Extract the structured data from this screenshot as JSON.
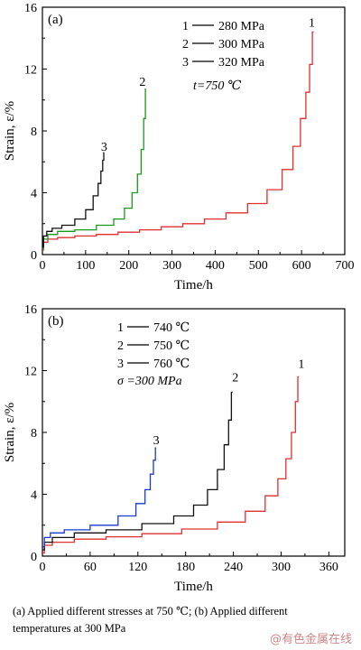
{
  "chart_data": [
    {
      "type": "line",
      "panel_label": "(a)",
      "xlabel": "Time/h",
      "ylabel": "Strain, ε/%",
      "xlim": [
        0,
        700
      ],
      "ylim": [
        0,
        16
      ],
      "xticks": [
        0,
        100,
        200,
        300,
        400,
        500,
        600,
        700
      ],
      "yticks": [
        0,
        4,
        8,
        12,
        16
      ],
      "grid": false,
      "legend_position": "top-right",
      "legend": [
        "1 — 280 MPa",
        "2 — 300 MPa",
        "3 — 320 MPa"
      ],
      "annotation": "t=750 ℃",
      "colors": {
        "1": "#e03030",
        "2": "#1a9a1a",
        "3": "#111111"
      },
      "series": [
        {
          "name": "1",
          "curve_label": "1",
          "color": "#e03030",
          "x": [
            0,
            5,
            20,
            50,
            100,
            150,
            200,
            250,
            300,
            350,
            400,
            450,
            500,
            540,
            570,
            590,
            605,
            615,
            622,
            628
          ],
          "y": [
            0.3,
            0.8,
            1.0,
            1.1,
            1.2,
            1.3,
            1.45,
            1.6,
            1.8,
            2.0,
            2.3,
            2.7,
            3.3,
            4.2,
            5.5,
            7.0,
            8.8,
            10.5,
            12.3,
            14.4
          ]
        },
        {
          "name": "2",
          "curve_label": "2",
          "color": "#1a9a1a",
          "x": [
            0,
            5,
            20,
            50,
            100,
            150,
            180,
            200,
            215,
            225,
            232,
            237,
            240
          ],
          "y": [
            0.4,
            1.0,
            1.3,
            1.5,
            1.6,
            1.9,
            2.3,
            3.0,
            4.0,
            5.2,
            6.8,
            8.8,
            10.7
          ]
        },
        {
          "name": "3",
          "curve_label": "3",
          "color": "#111111",
          "x": [
            0,
            5,
            15,
            30,
            60,
            90,
            110,
            125,
            133,
            138,
            141,
            143
          ],
          "y": [
            0.5,
            1.2,
            1.5,
            1.7,
            1.9,
            2.3,
            2.9,
            3.8,
            4.6,
            5.4,
            6.1,
            6.6
          ]
        }
      ]
    },
    {
      "type": "line",
      "panel_label": "(b)",
      "xlabel": "Time/h",
      "ylabel": "Strain, ε/%",
      "xlim": [
        0,
        380
      ],
      "ylim": [
        0,
        16
      ],
      "xticks": [
        0,
        60,
        120,
        180,
        240,
        300,
        360
      ],
      "yticks": [
        0,
        4,
        8,
        12,
        16
      ],
      "grid": false,
      "legend_position": "top-left",
      "legend": [
        "1 — 740 ℃",
        "2 — 750 ℃",
        "3 — 760 ℃"
      ],
      "annotation": "σ =300 MPa",
      "colors": {
        "1": "#e03030",
        "2": "#111111",
        "3": "#1a3ad0"
      },
      "series": [
        {
          "name": "1",
          "curve_label": "1",
          "color": "#e03030",
          "x": [
            0,
            5,
            20,
            60,
            100,
            150,
            200,
            240,
            270,
            290,
            302,
            310,
            316,
            320,
            322
          ],
          "y": [
            0.2,
            0.7,
            0.9,
            1.1,
            1.25,
            1.45,
            1.75,
            2.2,
            2.9,
            3.9,
            5.0,
            6.3,
            8.0,
            10.0,
            11.6
          ]
        },
        {
          "name": "2",
          "curve_label": "2",
          "color": "#111111",
          "x": [
            0,
            5,
            20,
            60,
            100,
            150,
            180,
            200,
            215,
            225,
            232,
            236,
            239
          ],
          "y": [
            0.4,
            0.9,
            1.2,
            1.5,
            1.7,
            2.1,
            2.6,
            3.3,
            4.3,
            5.6,
            7.2,
            8.8,
            10.6
          ]
        },
        {
          "name": "3",
          "curve_label": "3",
          "color": "#1a3ad0",
          "x": [
            0,
            5,
            15,
            40,
            80,
            110,
            125,
            133,
            138,
            141,
            143
          ],
          "y": [
            0.6,
            1.2,
            1.5,
            1.7,
            2.0,
            2.6,
            3.4,
            4.3,
            5.3,
            6.2,
            7.0
          ]
        }
      ]
    }
  ],
  "caption": {
    "line1": "(a) Applied different stresses at 750 ℃; (b) Applied different",
    "line2": "temperatures at 300 MPa"
  },
  "watermark": "@有色金属在线"
}
